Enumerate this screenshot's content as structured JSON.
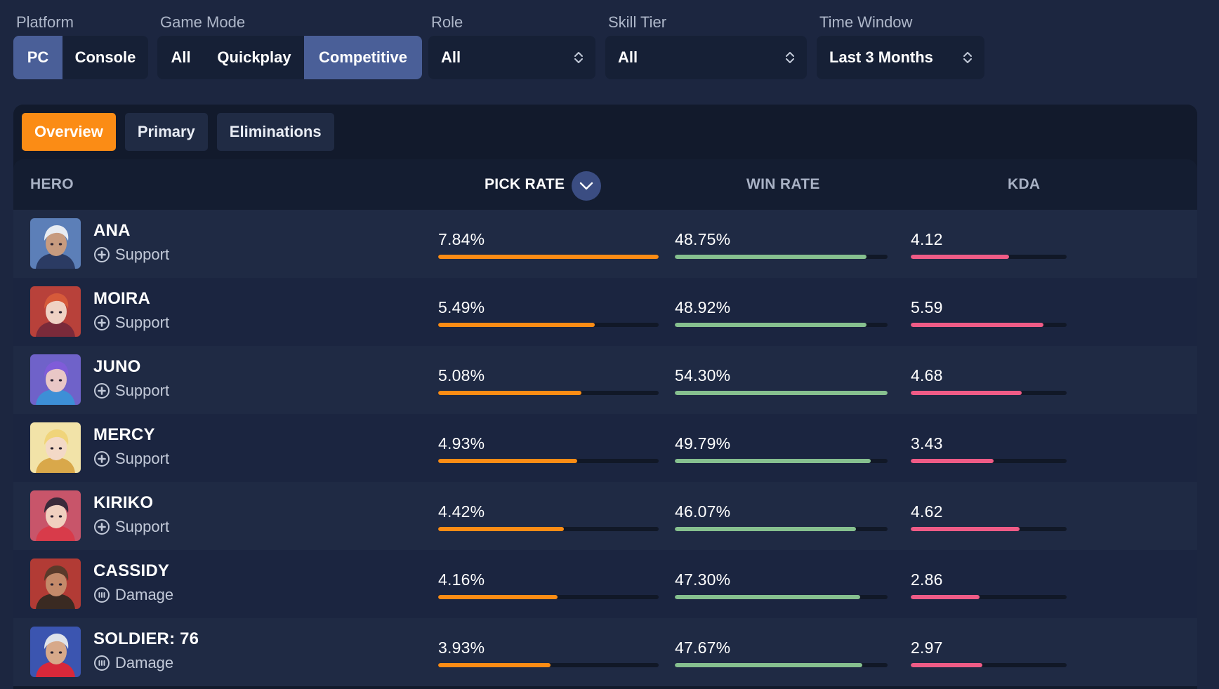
{
  "filters": {
    "platform": {
      "label": "Platform",
      "options": [
        "PC",
        "Console"
      ],
      "selected": "PC"
    },
    "game_mode": {
      "label": "Game Mode",
      "options": [
        "All",
        "Quickplay",
        "Competitive"
      ],
      "selected": "Competitive"
    },
    "role": {
      "label": "Role",
      "value": "All"
    },
    "skill_tier": {
      "label": "Skill Tier",
      "value": "All"
    },
    "time_window": {
      "label": "Time Window",
      "value": "Last 3 Months"
    }
  },
  "tabs": [
    {
      "label": "Overview",
      "active": true
    },
    {
      "label": "Primary",
      "active": false
    },
    {
      "label": "Eliminations",
      "active": false
    }
  ],
  "columns": {
    "hero": "HERO",
    "pick_rate": "PICK RATE",
    "win_rate": "WIN RATE",
    "kda": "KDA",
    "sort_icon": "chevron-down-icon"
  },
  "colors": {
    "pick_rate_bar": "#fb8c15",
    "win_rate_bar": "#86c08f",
    "kda_bar": "#ef5b86",
    "accent_tab": "#fb8c15",
    "active_filter": "#4a5f98"
  },
  "heroes": [
    {
      "name": "ANA",
      "role": "Support",
      "role_icon": "support-plus-icon",
      "pick_rate": "7.84",
      "win_rate": "48.75",
      "kda": "4.12",
      "pick_fill": 1.0,
      "win_fill": 0.9,
      "kda_fill": 0.63,
      "avatar": {
        "bg": "#5c7fb8",
        "skin": "#c79b7f",
        "hair": "#e8ecf2",
        "accent": "#2b3b63"
      }
    },
    {
      "name": "MOIRA",
      "role": "Support",
      "role_icon": "support-plus-icon",
      "pick_rate": "5.49",
      "win_rate": "48.92",
      "kda": "5.59",
      "pick_fill": 0.71,
      "win_fill": 0.9,
      "kda_fill": 0.85,
      "avatar": {
        "bg": "#b8413a",
        "skin": "#efd2c4",
        "hair": "#d65a3a",
        "accent": "#7a2a3a"
      }
    },
    {
      "name": "JUNO",
      "role": "Support",
      "role_icon": "support-plus-icon",
      "pick_rate": "5.08",
      "win_rate": "54.30",
      "kda": "4.68",
      "pick_fill": 0.65,
      "win_fill": 1.0,
      "kda_fill": 0.71,
      "avatar": {
        "bg": "#6f62c9",
        "skin": "#e9c7c6",
        "hair": "#7f5cd8",
        "accent": "#3d8fd6"
      }
    },
    {
      "name": "MERCY",
      "role": "Support",
      "role_icon": "support-plus-icon",
      "pick_rate": "4.93",
      "win_rate": "49.79",
      "kda": "3.43",
      "pick_fill": 0.63,
      "win_fill": 0.92,
      "kda_fill": 0.53,
      "avatar": {
        "bg": "#f2e3a8",
        "skin": "#f3d9c7",
        "hair": "#f0d47a",
        "accent": "#d9a84a"
      }
    },
    {
      "name": "KIRIKO",
      "role": "Support",
      "role_icon": "support-plus-icon",
      "pick_rate": "4.42",
      "win_rate": "46.07",
      "kda": "4.62",
      "pick_fill": 0.57,
      "win_fill": 0.85,
      "kda_fill": 0.7,
      "avatar": {
        "bg": "#c8556a",
        "skin": "#f0d0bf",
        "hair": "#3a2a3a",
        "accent": "#d83b4a"
      }
    },
    {
      "name": "CASSIDY",
      "role": "Damage",
      "role_icon": "damage-bullets-icon",
      "pick_rate": "4.16",
      "win_rate": "47.30",
      "kda": "2.86",
      "pick_fill": 0.54,
      "win_fill": 0.87,
      "kda_fill": 0.44,
      "avatar": {
        "bg": "#b23b35",
        "skin": "#c48a6a",
        "hair": "#5a3a2a",
        "accent": "#3a2a22"
      }
    },
    {
      "name": "SOLDIER: 76",
      "role": "Damage",
      "role_icon": "damage-bullets-icon",
      "pick_rate": "3.93",
      "win_rate": "47.67",
      "kda": "2.97",
      "pick_fill": 0.51,
      "win_fill": 0.88,
      "kda_fill": 0.46,
      "avatar": {
        "bg": "#3b55b0",
        "skin": "#d7a98a",
        "hair": "#dfe3ea",
        "accent": "#d8283a"
      }
    }
  ]
}
